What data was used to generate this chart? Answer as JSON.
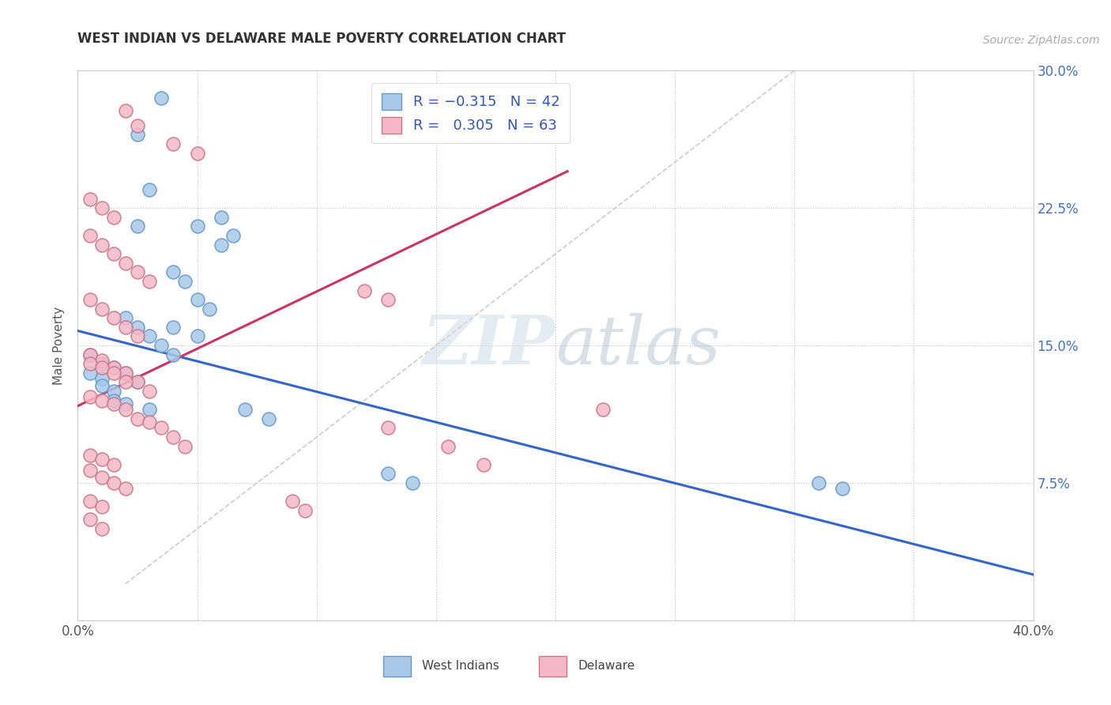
{
  "title": "WEST INDIAN VS DELAWARE MALE POVERTY CORRELATION CHART",
  "source": "Source: ZipAtlas.com",
  "ylabel": "Male Poverty",
  "xlim": [
    0.0,
    0.4
  ],
  "ylim": [
    0.0,
    0.3
  ],
  "color_blue": "#a8c8e8",
  "color_blue_edge": "#6699cc",
  "color_pink": "#f4b8c8",
  "color_pink_edge": "#cc7788",
  "line_blue": "#3366cc",
  "line_pink": "#cc3366",
  "line_diag": "#cccccc",
  "watermark_zip": "ZIP",
  "watermark_atlas": "atlas",
  "west_indians_x": [
    0.035,
    0.025,
    0.03,
    0.025,
    0.06,
    0.05,
    0.065,
    0.06,
    0.04,
    0.045,
    0.05,
    0.055,
    0.02,
    0.025,
    0.03,
    0.035,
    0.04,
    0.01,
    0.015,
    0.02,
    0.025,
    0.005,
    0.005,
    0.01,
    0.01,
    0.015,
    0.015,
    0.02,
    0.03,
    0.04,
    0.05,
    0.07,
    0.08,
    0.13,
    0.14,
    0.31,
    0.32
  ],
  "west_indians_y": [
    0.285,
    0.265,
    0.235,
    0.215,
    0.22,
    0.215,
    0.21,
    0.205,
    0.19,
    0.185,
    0.175,
    0.17,
    0.165,
    0.16,
    0.155,
    0.15,
    0.145,
    0.14,
    0.138,
    0.135,
    0.13,
    0.145,
    0.135,
    0.132,
    0.128,
    0.125,
    0.12,
    0.118,
    0.115,
    0.16,
    0.155,
    0.115,
    0.11,
    0.08,
    0.075,
    0.075,
    0.072
  ],
  "delaware_x": [
    0.02,
    0.025,
    0.04,
    0.05,
    0.005,
    0.01,
    0.015,
    0.005,
    0.01,
    0.015,
    0.02,
    0.025,
    0.03,
    0.005,
    0.01,
    0.015,
    0.02,
    0.025,
    0.005,
    0.01,
    0.015,
    0.02,
    0.025,
    0.03,
    0.005,
    0.01,
    0.015,
    0.02,
    0.005,
    0.01,
    0.015,
    0.02,
    0.025,
    0.03,
    0.035,
    0.04,
    0.045,
    0.005,
    0.01,
    0.015,
    0.005,
    0.01,
    0.015,
    0.02,
    0.005,
    0.01,
    0.005,
    0.01,
    0.12,
    0.13,
    0.22,
    0.155,
    0.17,
    0.13,
    0.09,
    0.095
  ],
  "delaware_y": [
    0.278,
    0.27,
    0.26,
    0.255,
    0.23,
    0.225,
    0.22,
    0.21,
    0.205,
    0.2,
    0.195,
    0.19,
    0.185,
    0.175,
    0.17,
    0.165,
    0.16,
    0.155,
    0.145,
    0.142,
    0.138,
    0.135,
    0.13,
    0.125,
    0.14,
    0.138,
    0.135,
    0.13,
    0.122,
    0.12,
    0.118,
    0.115,
    0.11,
    0.108,
    0.105,
    0.1,
    0.095,
    0.09,
    0.088,
    0.085,
    0.082,
    0.078,
    0.075,
    0.072,
    0.065,
    0.062,
    0.055,
    0.05,
    0.18,
    0.175,
    0.115,
    0.095,
    0.085,
    0.105,
    0.065,
    0.06
  ],
  "blue_line_x": [
    0.0,
    0.4
  ],
  "blue_line_y": [
    0.158,
    0.025
  ],
  "pink_line_x": [
    0.0,
    0.205
  ],
  "pink_line_y": [
    0.117,
    0.245
  ],
  "diag_line_x": [
    0.02,
    0.3
  ],
  "diag_line_y": [
    0.02,
    0.3
  ]
}
